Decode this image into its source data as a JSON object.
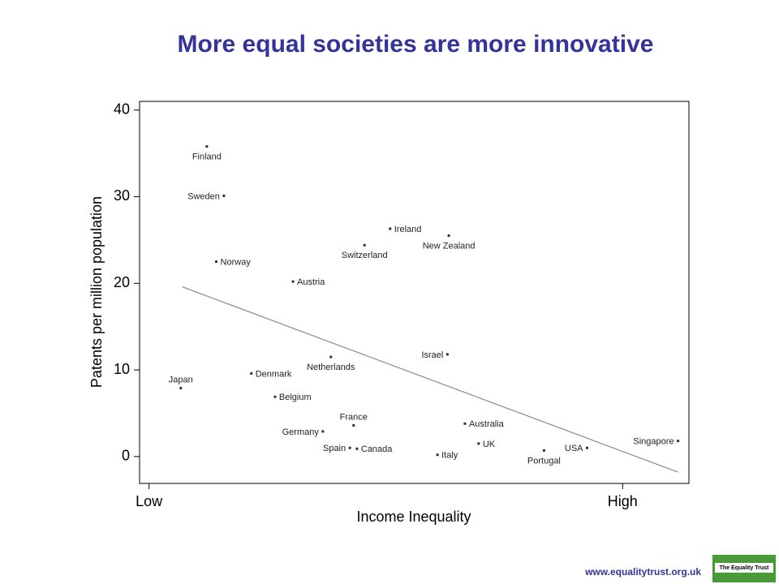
{
  "chart_data": {
    "type": "scatter",
    "title": "More equal societies are more innovative",
    "x_label": "Income Inequality",
    "y_label": "Patents per million population",
    "footer": "www.equalitytrust.org.uk",
    "logo": "The Equality Trust",
    "color": "#333333",
    "title_color": "#333399",
    "xlim": [
      -0.2,
      11.4
    ],
    "xticks": [
      {
        "value": 0,
        "label": "Low"
      },
      {
        "value": 10,
        "label": "High"
      }
    ],
    "ylim": [
      -3.1,
      41.0
    ],
    "yticks": [
      0,
      10,
      20,
      30,
      40
    ],
    "labels": [
      "Finland",
      "Sweden",
      "Norway",
      "Austria",
      "Switzerland",
      "Ireland",
      "New Zealand",
      "Israel",
      "Netherlands",
      "Denmark",
      "Japan",
      "Belgium",
      "France",
      "Germany",
      "Spain",
      "Canada",
      "Italy",
      "Australia",
      "UK",
      "Portugal",
      "USA",
      "Singapore"
    ],
    "x": [
      1.22,
      1.58,
      1.42,
      3.04,
      4.55,
      5.09,
      6.33,
      6.3,
      3.84,
      2.16,
      0.67,
      2.66,
      4.32,
      3.67,
      4.24,
      4.39,
      6.09,
      6.67,
      6.96,
      8.34,
      9.25,
      11.17
    ],
    "y": [
      35.8,
      30.1,
      22.5,
      20.2,
      24.4,
      26.3,
      25.5,
      11.8,
      11.5,
      9.6,
      7.9,
      6.9,
      3.6,
      2.9,
      1.0,
      0.9,
      0.2,
      3.8,
      1.5,
      0.7,
      1.0,
      1.8
    ],
    "trend_line": {
      "x": [
        0.7,
        11.17
      ],
      "y": [
        19.6,
        -1.8
      ],
      "color": "#888888"
    }
  }
}
